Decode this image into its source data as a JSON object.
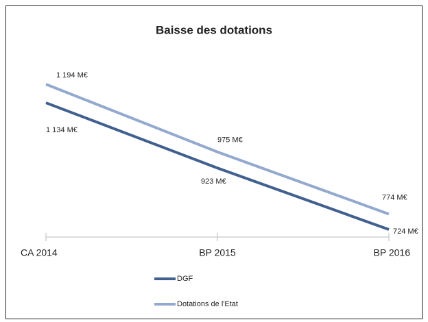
{
  "chart_data": {
    "type": "line",
    "title": "Baisse des dotations",
    "categories": [
      "CA 2014",
      "BP 2015",
      "BP 2016"
    ],
    "series": [
      {
        "name": "DGF",
        "color": "#41608f",
        "values": [
          1134,
          923,
          724
        ],
        "value_labels": [
          "1 134 M€",
          "923 M€",
          "724 M€"
        ]
      },
      {
        "name": "Dotations de l'Etat",
        "color": "#94a9cf",
        "values": [
          1194,
          975,
          774
        ],
        "value_labels": [
          "1 194 M€",
          "975 M€",
          "774 M€"
        ]
      }
    ],
    "legend": "bottom"
  }
}
